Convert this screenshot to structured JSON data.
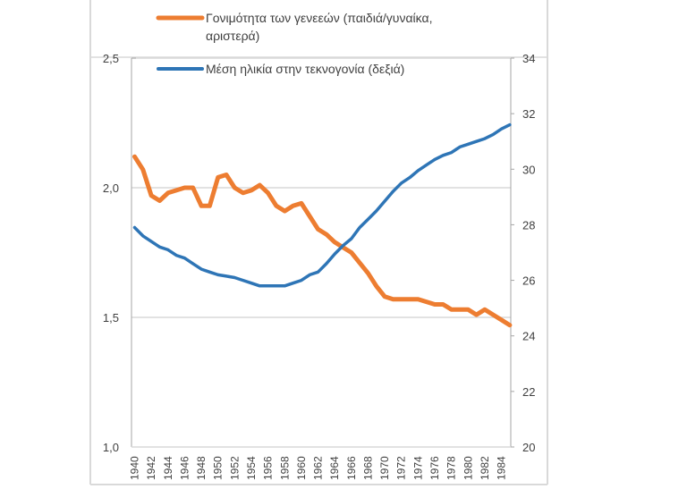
{
  "chart_data": {
    "type": "line",
    "title": "",
    "xlabel": "",
    "ylabel_left": "",
    "ylabel_right": "",
    "x": [
      1940,
      1941,
      1942,
      1943,
      1944,
      1945,
      1946,
      1947,
      1948,
      1949,
      1950,
      1951,
      1952,
      1953,
      1954,
      1955,
      1956,
      1957,
      1958,
      1959,
      1960,
      1961,
      1962,
      1963,
      1964,
      1965,
      1966,
      1967,
      1968,
      1969,
      1970,
      1971,
      1972,
      1973,
      1974,
      1975,
      1976,
      1977,
      1978,
      1979,
      1980,
      1981,
      1982,
      1983,
      1984,
      1985
    ],
    "x_tick_labels": [
      "1940",
      "1942",
      "1944",
      "1946",
      "1948",
      "1950",
      "1952",
      "1954",
      "1956",
      "1958",
      "1960",
      "1962",
      "1964",
      "1966",
      "1968",
      "1970",
      "1972",
      "1974",
      "1976",
      "1978",
      "1980",
      "1982",
      "1984"
    ],
    "y_left": {
      "range": [
        1.0,
        2.5
      ],
      "ticks": [
        "1,0",
        "1,5",
        "2,0",
        "2,5"
      ],
      "tick_values": [
        1.0,
        1.5,
        2.0,
        2.5
      ]
    },
    "y_right": {
      "range": [
        20,
        34
      ],
      "ticks": [
        "20",
        "22",
        "24",
        "26",
        "28",
        "30",
        "32",
        "34"
      ],
      "tick_values": [
        20,
        22,
        24,
        26,
        28,
        30,
        32,
        34
      ]
    },
    "grid": "horizontal",
    "legend_position": "top",
    "series": [
      {
        "name": "Γονιμότητα των γενεεών (παιδιά/γυναίκα, αριστερά)",
        "legend_line1": "Γονιμότητα των γενεεών (παιδιά/γυναίκα,",
        "legend_line2": "αριστερά)",
        "axis": "left",
        "color": "#ED7D31",
        "values": [
          2.12,
          2.07,
          1.97,
          1.95,
          1.98,
          1.99,
          2.0,
          2.0,
          1.93,
          1.93,
          2.04,
          2.05,
          2.0,
          1.98,
          1.99,
          2.01,
          1.98,
          1.93,
          1.91,
          1.93,
          1.94,
          1.89,
          1.84,
          1.82,
          1.79,
          1.77,
          1.75,
          1.71,
          1.67,
          1.62,
          1.58,
          1.57,
          1.57,
          1.57,
          1.57,
          1.56,
          1.55,
          1.55,
          1.53,
          1.53,
          1.53,
          1.51,
          1.53,
          1.51,
          1.49,
          1.47
        ]
      },
      {
        "name": "Μέση ηλικία στην τεκνογονία (δεξιά)",
        "legend_line1": "Μέση ηλικία στην τεκνογονία (δεξιά)",
        "legend_line2": "",
        "axis": "right",
        "color": "#2E75B6",
        "values": [
          27.9,
          27.6,
          27.4,
          27.2,
          27.1,
          26.9,
          26.8,
          26.6,
          26.4,
          26.3,
          26.2,
          26.15,
          26.1,
          26.0,
          25.9,
          25.8,
          25.8,
          25.8,
          25.8,
          25.9,
          26.0,
          26.2,
          26.3,
          26.6,
          26.95,
          27.25,
          27.5,
          27.9,
          28.2,
          28.5,
          28.85,
          29.2,
          29.5,
          29.7,
          29.95,
          30.15,
          30.35,
          30.5,
          30.6,
          30.8,
          30.9,
          31.0,
          31.1,
          31.25,
          31.45,
          31.6
        ]
      }
    ]
  }
}
